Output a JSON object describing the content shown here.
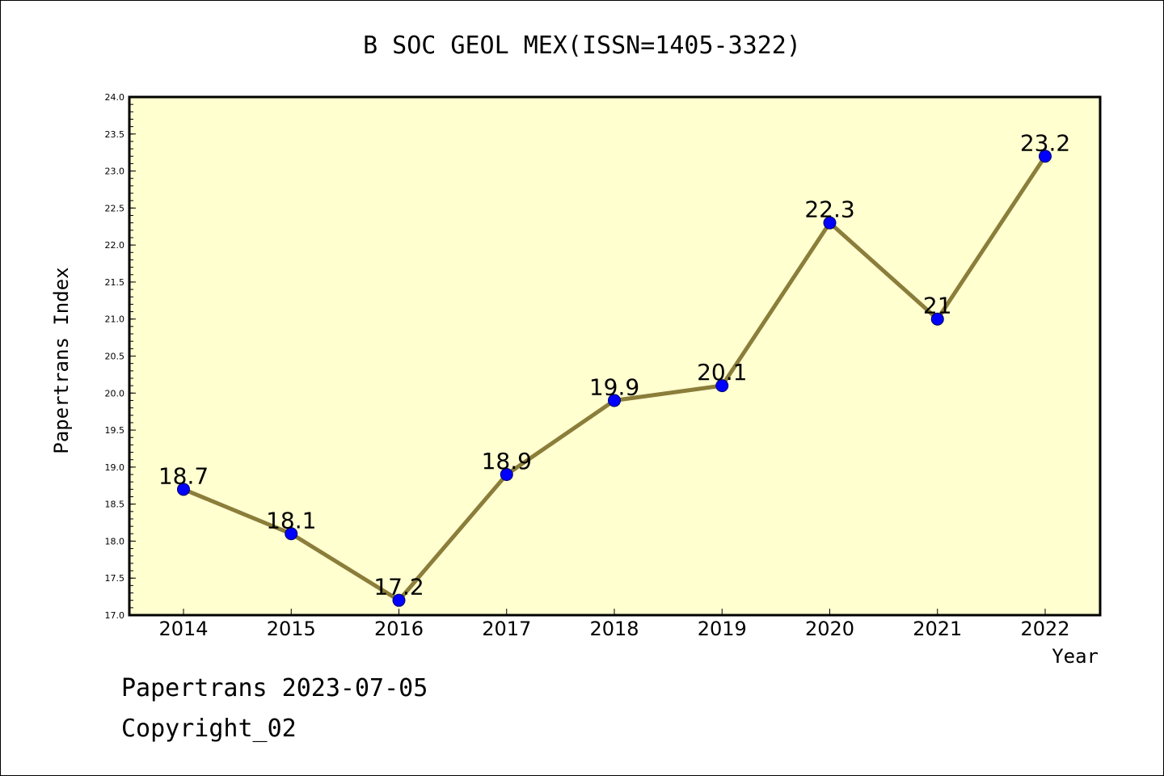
{
  "chart_data": {
    "type": "line",
    "title": "B SOC GEOL MEX(ISSN=1405-3322)",
    "xlabel": "Year",
    "ylabel": "Papertrans Index",
    "categories": [
      "2014",
      "2015",
      "2016",
      "2017",
      "2018",
      "2019",
      "2020",
      "2021",
      "2022"
    ],
    "series": [
      {
        "values": [
          18.7,
          18.1,
          17.2,
          18.9,
          19.9,
          20.1,
          22.3,
          21.0,
          23.2
        ],
        "labels": [
          "18.7",
          "18.1",
          "17.2",
          "18.9",
          "19.9",
          "20.1",
          "22.3",
          "21",
          "23.2"
        ]
      }
    ],
    "ylim": [
      17.0,
      24.0
    ],
    "yticks": [
      "17.0",
      "17.5",
      "18.0",
      "18.5",
      "19.0",
      "19.5",
      "20.0",
      "20.5",
      "21.0",
      "21.5",
      "22.0",
      "22.5",
      "23.0",
      "23.5",
      "24.0"
    ],
    "grid": false,
    "colors": {
      "plot_background": "#ffffd0",
      "line": "#8b7d3a",
      "marker": "#0000ff",
      "marker_edge": "#000066"
    }
  },
  "footer": {
    "line1": "Papertrans 2023-07-05",
    "line2": "Copyright_02"
  }
}
